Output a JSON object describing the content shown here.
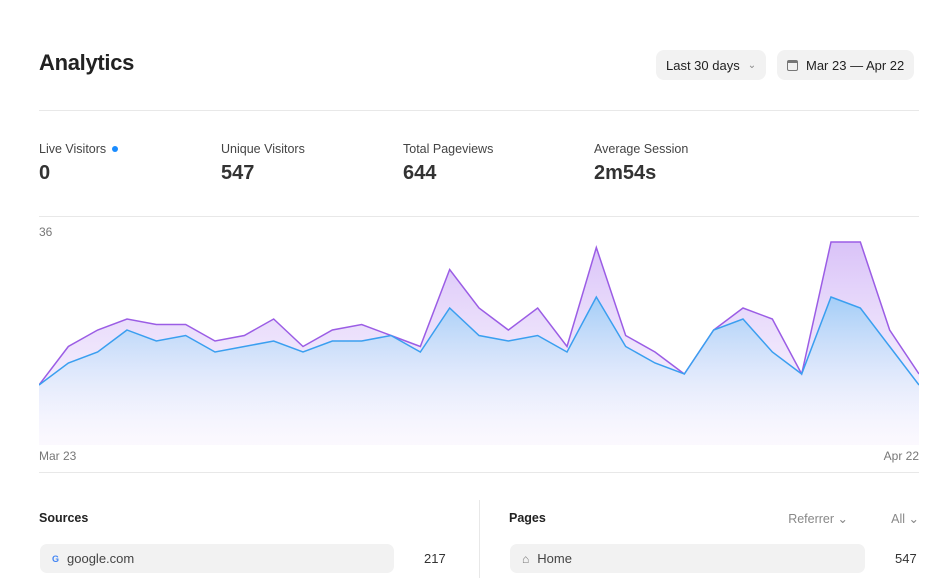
{
  "header": {
    "title": "Analytics",
    "range_label": "Last 30 days",
    "date_range": "Mar 23 — Apr 22"
  },
  "stats": [
    {
      "label": "Live Visitors",
      "value": "0"
    },
    {
      "label": "Unique Visitors",
      "value": "547"
    },
    {
      "label": "Total Pageviews",
      "value": "644"
    },
    {
      "label": "Average Session",
      "value": "2m54s"
    }
  ],
  "colors": {
    "pageviews": "#9b5de5",
    "visitors": "#3a9ff0",
    "live_dot": "#1a8cff"
  },
  "chart_data": {
    "type": "area",
    "y_max_label": "36",
    "ylim": [
      0,
      36
    ],
    "x_start_label": "Mar 23",
    "x_end_label": "Apr 22",
    "series": [
      {
        "name": "Pageviews",
        "values": [
          10,
          17,
          20,
          22,
          21,
          21,
          18,
          19,
          22,
          17,
          20,
          21,
          19,
          17,
          31,
          24,
          20,
          24,
          17,
          35,
          19,
          16,
          12,
          20,
          24,
          22,
          12,
          36,
          36,
          20,
          12
        ]
      },
      {
        "name": "Visitors",
        "values": [
          10,
          14,
          16,
          20,
          18,
          19,
          16,
          17,
          18,
          16,
          18,
          18,
          19,
          16,
          24,
          19,
          18,
          19,
          16,
          26,
          17,
          14,
          12,
          20,
          22,
          16,
          12,
          26,
          24,
          17,
          10
        ]
      }
    ]
  },
  "sources": {
    "title": "Sources",
    "dropdown": "Referrer",
    "items": [
      {
        "label": "google.com",
        "count": "217"
      }
    ]
  },
  "pages": {
    "title": "Pages",
    "dropdown": "All",
    "items": [
      {
        "label": "Home",
        "count": "547"
      }
    ]
  }
}
